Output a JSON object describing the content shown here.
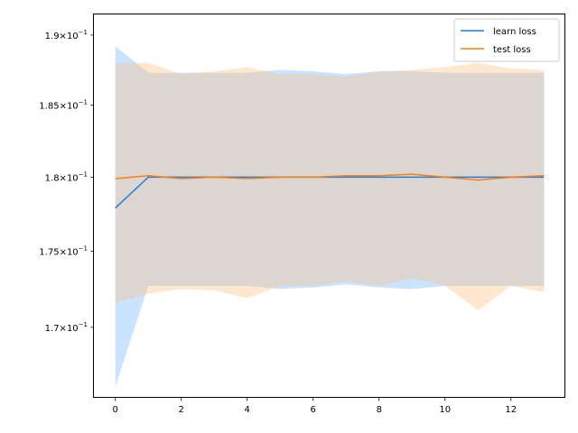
{
  "chart_data": {
    "type": "line",
    "title": "",
    "xlabel": "",
    "ylabel": "",
    "y_scale": "log",
    "xlim": [
      -0.65,
      13.65
    ],
    "ylim": [
      0.1655,
      0.1915
    ],
    "x_ticks": [
      0,
      2,
      4,
      6,
      8,
      10,
      12
    ],
    "x_tick_labels": [
      "0",
      "2",
      "4",
      "6",
      "8",
      "10",
      "12"
    ],
    "y_ticks": [
      0.17,
      0.175,
      0.18,
      0.185,
      0.19
    ],
    "y_tick_labels": [
      {
        "mantissa": "1.7",
        "exponent": "−1"
      },
      {
        "mantissa": "1.75",
        "exponent": "−1"
      },
      {
        "mantissa": "1.8",
        "exponent": "−1"
      },
      {
        "mantissa": "1.85",
        "exponent": "−1"
      },
      {
        "mantissa": "1.9",
        "exponent": "−1"
      }
    ],
    "grid": false,
    "legend_position": "top-right",
    "x": [
      0,
      1,
      2,
      3,
      4,
      5,
      6,
      7,
      8,
      9,
      10,
      11,
      12,
      13
    ],
    "series": [
      {
        "name": "learn loss",
        "color": "#1f7fe0",
        "band_color": "#66b3ff",
        "values": [
          0.1779,
          0.18,
          0.18,
          0.18,
          0.18,
          0.18,
          0.18,
          0.18,
          0.18,
          0.18,
          0.18,
          0.18,
          0.18,
          0.18
        ],
        "upper": [
          0.1892,
          0.1873,
          0.1873,
          0.1873,
          0.1873,
          0.1875,
          0.1874,
          0.1872,
          0.1874,
          0.1874,
          0.1873,
          0.1873,
          0.1873,
          0.1873
        ],
        "lower": [
          0.1662,
          0.1727,
          0.1727,
          0.1727,
          0.1727,
          0.1725,
          0.1726,
          0.1728,
          0.1726,
          0.1725,
          0.1727,
          0.1727,
          0.1727,
          0.1727
        ]
      },
      {
        "name": "test loss",
        "color": "#ff7f0e",
        "band_color": "#ffbb78",
        "values": [
          0.1799,
          0.1801,
          0.1799,
          0.18,
          0.1799,
          0.18,
          0.18,
          0.1801,
          0.1801,
          0.1802,
          0.18,
          0.1798,
          0.18,
          0.1801
        ],
        "upper": [
          0.188,
          0.188,
          0.1872,
          0.1874,
          0.1877,
          0.1872,
          0.1872,
          0.187,
          0.1874,
          0.1875,
          0.1877,
          0.188,
          0.1876,
          0.1875
        ],
        "lower": [
          0.1716,
          0.1722,
          0.1725,
          0.1724,
          0.1719,
          0.1727,
          0.1727,
          0.173,
          0.1727,
          0.1732,
          0.1727,
          0.1711,
          0.1727,
          0.1723
        ]
      }
    ]
  }
}
